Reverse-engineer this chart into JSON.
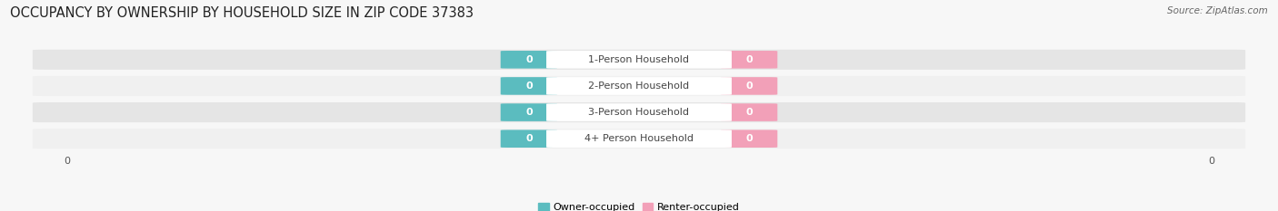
{
  "title": "OCCUPANCY BY OWNERSHIP BY HOUSEHOLD SIZE IN ZIP CODE 37383",
  "source": "Source: ZipAtlas.com",
  "categories": [
    "1-Person Household",
    "2-Person Household",
    "3-Person Household",
    "4+ Person Household"
  ],
  "owner_values": [
    0,
    0,
    0,
    0
  ],
  "renter_values": [
    0,
    0,
    0,
    0
  ],
  "owner_color": "#5bbcbf",
  "renter_color": "#f2a0b8",
  "owner_label": "Owner-occupied",
  "renter_label": "Renter-occupied",
  "bar_label_color": "#ffffff",
  "category_label_color": "#444444",
  "background_color": "#f7f7f7",
  "row_light": "#f0f0f0",
  "row_dark": "#e5e5e5",
  "title_fontsize": 10.5,
  "source_fontsize": 7.5,
  "label_fontsize": 8,
  "axis_label_fontsize": 8,
  "figsize": [
    14.06,
    2.33
  ]
}
